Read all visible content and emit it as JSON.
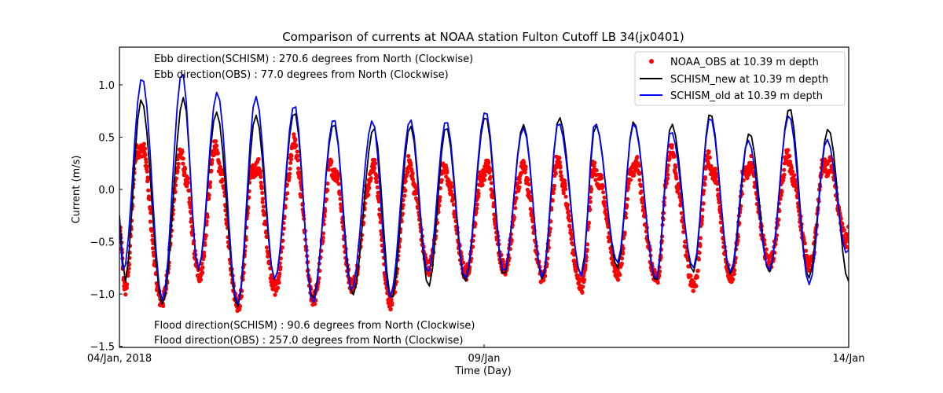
{
  "chart_data": {
    "type": "line",
    "title": "Comparison of currents at NOAA station Fulton Cutoff LB 34(jx0401)",
    "xlabel": "Time (Day)",
    "ylabel": "Current (m/s)",
    "x_unit": "days since 04/Jan/2018 00:00",
    "xlim": [
      0,
      10
    ],
    "ylim": [
      -1.51,
      1.36
    ],
    "x_ticks": [
      {
        "value": 0,
        "label": "04/Jan, 2018"
      },
      {
        "value": 5,
        "label": "09/Jan"
      },
      {
        "value": 10,
        "label": "14/Jan"
      }
    ],
    "y_ticks": [
      {
        "value": -1.5,
        "label": "−1.5"
      },
      {
        "value": -1.0,
        "label": "−1.0"
      },
      {
        "value": -0.5,
        "label": "−0.5"
      },
      {
        "value": 0.0,
        "label": "0.0"
      },
      {
        "value": 0.5,
        "label": "0.5"
      },
      {
        "value": 1.0,
        "label": "1.0"
      }
    ],
    "grid": false,
    "legend": {
      "placement": "top-right",
      "entries": [
        {
          "label": "NOAA_OBS at 10.39 m depth",
          "marker": "dot",
          "color": "#ff0000"
        },
        {
          "label": "SCHISM_new at 10.39 m depth",
          "marker": "line",
          "color": "#000000"
        },
        {
          "label": "SCHISM_old at 10.39 m depth",
          "marker": "line",
          "color": "#0000ff"
        }
      ]
    },
    "annotations": {
      "top": [
        "Ebb direction(SCHISM) : 270.6 degrees from North (Clockwise)",
        "Ebb direction(OBS) : 77.0 degrees from North (Clockwise)"
      ],
      "bottom": [
        "Flood direction(SCHISM) : 90.6 degrees from North (Clockwise)",
        "Flood direction(OBS) : 257.0 degrees from North (Clockwise)"
      ]
    },
    "series": [
      {
        "name": "SCHISM_old at 10.39 m depth",
        "color": "#0000ff",
        "style": "line",
        "extrema_x": [
          0.0,
          0.05,
          0.31,
          0.59,
          0.86,
          1.08,
          1.34,
          1.62,
          1.87,
          2.13,
          2.4,
          2.65,
          2.94,
          3.18,
          3.47,
          3.71,
          3.99,
          4.23,
          4.48,
          4.74,
          5.02,
          5.27,
          5.54,
          5.8,
          6.02,
          6.34,
          6.52,
          6.83,
          7.05,
          7.36,
          7.56,
          7.87,
          8.1,
          8.38,
          8.62,
          8.91,
          9.18,
          9.46,
          9.7,
          9.98,
          10.0
        ],
        "extrema_y": [
          -0.3,
          -0.8,
          1.07,
          -1.06,
          1.12,
          -0.76,
          0.93,
          -1.1,
          0.89,
          -0.86,
          0.81,
          -1.09,
          0.68,
          -0.97,
          0.66,
          -1.03,
          0.67,
          -0.8,
          0.66,
          -0.85,
          0.75,
          -0.79,
          0.59,
          -0.84,
          0.64,
          -0.83,
          0.64,
          -0.7,
          0.63,
          -0.86,
          0.56,
          -0.75,
          0.69,
          -0.79,
          0.47,
          -0.77,
          0.71,
          -0.91,
          0.48,
          -0.62,
          -0.58
        ]
      },
      {
        "name": "SCHISM_new at 10.39 m depth",
        "color": "#000000",
        "style": "line",
        "extrema_x": [
          0.0,
          0.07,
          0.3,
          0.59,
          0.88,
          1.08,
          1.33,
          1.62,
          1.87,
          2.13,
          2.4,
          2.65,
          2.94,
          3.2,
          3.49,
          3.73,
          3.99,
          4.24,
          4.48,
          4.74,
          5.02,
          5.27,
          5.54,
          5.8,
          6.03,
          6.33,
          6.53,
          6.83,
          7.05,
          7.36,
          7.57,
          7.87,
          8.1,
          8.38,
          8.64,
          8.91,
          9.19,
          9.45,
          9.72,
          10.0
        ],
        "extrema_y": [
          -0.25,
          -0.9,
          0.86,
          -1.1,
          0.88,
          -0.77,
          0.74,
          -1.12,
          0.71,
          -0.86,
          0.74,
          -1.05,
          0.63,
          -1.01,
          0.59,
          -1.05,
          0.61,
          -0.93,
          0.6,
          -0.88,
          0.7,
          -0.82,
          0.62,
          -0.86,
          0.69,
          -0.82,
          0.62,
          -0.75,
          0.65,
          -0.88,
          0.63,
          -0.79,
          0.73,
          -0.81,
          0.54,
          -0.79,
          0.78,
          -0.85,
          0.58,
          -0.88
        ]
      },
      {
        "name": "NOAA_OBS at 10.39 m depth",
        "color": "#ff0000",
        "style": "scatter",
        "sampling": "every 6 minutes, cosine-interpolated between tidal extrema with an ebb-plateau near 0.0–0.3 m/s",
        "extrema_x": [
          0.0,
          0.08,
          0.27,
          0.58,
          0.85,
          1.1,
          1.32,
          1.63,
          1.85,
          2.14,
          2.39,
          2.66,
          2.93,
          3.19,
          3.47,
          3.72,
          3.98,
          4.24,
          4.47,
          4.75,
          5.01,
          5.28,
          5.53,
          5.81,
          6.01,
          6.34,
          6.52,
          6.84,
          7.04,
          7.37,
          7.55,
          7.88,
          8.09,
          8.39,
          8.61,
          8.92,
          9.17,
          9.47,
          9.69,
          9.98,
          10.0
        ],
        "extrema_y": [
          -0.4,
          -0.95,
          0.58,
          -1.08,
          0.38,
          -0.82,
          0.45,
          -1.1,
          0.32,
          -0.95,
          0.5,
          -1.05,
          0.3,
          -0.92,
          0.22,
          -1.08,
          0.23,
          -0.75,
          0.2,
          -0.8,
          0.27,
          -0.75,
          0.22,
          -0.85,
          0.25,
          -0.92,
          0.24,
          -0.8,
          0.3,
          -0.85,
          0.4,
          -0.92,
          0.35,
          -0.83,
          0.3,
          -0.7,
          0.33,
          -0.72,
          0.35,
          -0.5,
          -0.4
        ],
        "plateau": 0.05
      }
    ]
  }
}
